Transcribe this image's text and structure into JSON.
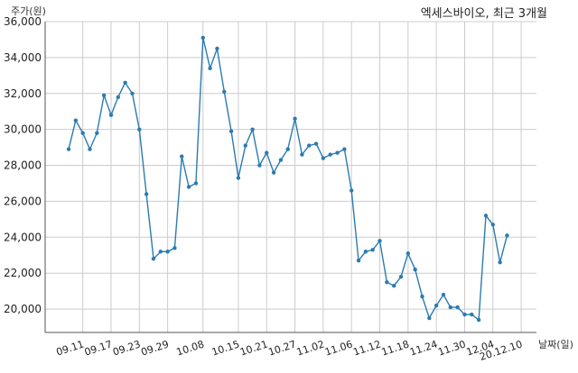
{
  "chart_data": {
    "type": "line",
    "title": "엑세스바이오, 최근 3개월",
    "xlabel": "날짜(일)",
    "ylabel": "주가(원)",
    "color": "#2b7bb0",
    "ylim": [
      18700,
      36000
    ],
    "yticks": [
      20000,
      22000,
      24000,
      26000,
      28000,
      30000,
      32000,
      34000,
      36000
    ],
    "ytick_labels": [
      "20,000",
      "22,000",
      "24,000",
      "26,000",
      "28,000",
      "30,000",
      "32,000",
      "34,000",
      "36,000"
    ],
    "xtick_labels": [
      "09.11",
      "09.17",
      "09.23",
      "09.29",
      "10.08",
      "10.15",
      "10.21",
      "10.27",
      "11.02",
      "11.06",
      "11.12",
      "11.18",
      "11.24",
      "11.30",
      "12.04",
      "20.12.10"
    ],
    "xtick_index": [
      2,
      6,
      10,
      14,
      19,
      24,
      28,
      32,
      36,
      40,
      44,
      48,
      52,
      56,
      60,
      64
    ],
    "grid": true,
    "values": [
      28900,
      30500,
      29800,
      28900,
      29800,
      31900,
      30800,
      31800,
      32600,
      32000,
      30000,
      26400,
      22800,
      23200,
      23200,
      23400,
      28500,
      26800,
      27000,
      35100,
      33400,
      34500,
      32100,
      29900,
      27300,
      29100,
      30000,
      28000,
      28700,
      27600,
      28300,
      28900,
      30600,
      28600,
      29100,
      29200,
      28400,
      28600,
      28700,
      28900,
      26600,
      22700,
      23200,
      23300,
      23800,
      21500,
      21300,
      21800,
      23100,
      22200,
      20700,
      19500,
      20200,
      20800,
      20100,
      20100,
      19700,
      19700,
      19400,
      25200,
      24700,
      22600,
      24100
    ]
  }
}
